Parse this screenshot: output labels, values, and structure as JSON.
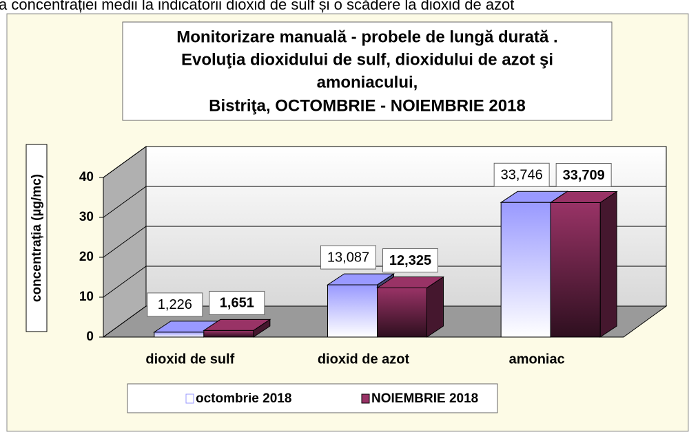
{
  "caption": "a concentrației medii la indicatorii dioxid de sulf și o scădere la dioxid de azot",
  "chart_data": {
    "type": "bar3d",
    "title": "Monitorizare manuală - probele de lungă durată .",
    "subtitle": [
      "Evoluţia dioxidului de sulf, dioxidului de azot şi",
      "amoniacului,",
      "Bistriţa, OCTOMBRIE - NOIEMBRIE 2018"
    ],
    "y_label": "concentrația (µg/mc)",
    "categories": [
      "dioxid de sulf",
      "dioxid de azot",
      "amoniac"
    ],
    "series": [
      {
        "name": "octombrie 2018",
        "color": "#9999ff",
        "values": [
          1.226,
          13.087,
          33.746
        ],
        "value_labels": [
          "1,226",
          "13,087",
          "33,746"
        ]
      },
      {
        "name": "NOIEMBRIE 2018",
        "color": "#993366",
        "values": [
          1.651,
          12.325,
          33.709
        ],
        "value_labels": [
          "1,651",
          "12,325",
          "33,709"
        ]
      }
    ],
    "ylim": [
      0,
      40
    ],
    "yticks": [
      0,
      10,
      20,
      30,
      40
    ],
    "grid": true,
    "legend": "bottom"
  }
}
